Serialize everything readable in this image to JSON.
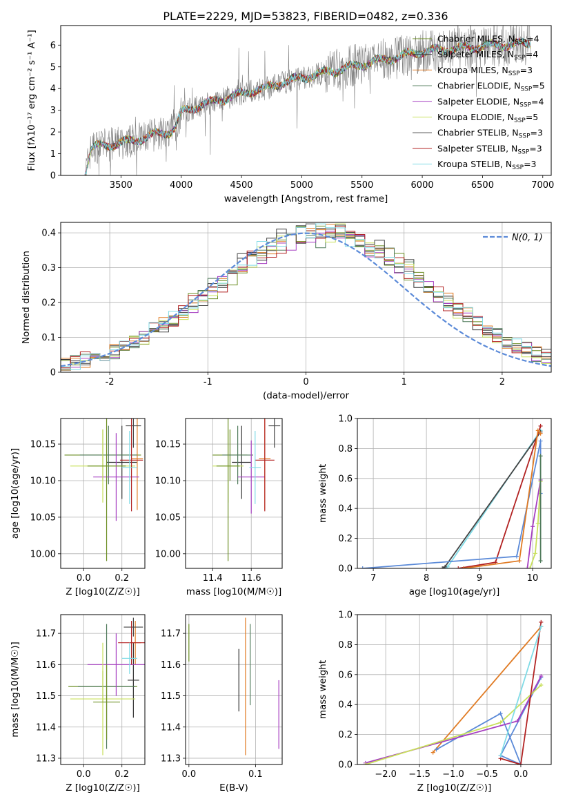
{
  "figure": {
    "title": "PLATE=2229, MJD=53823, FIBERID=0482, z=0.336"
  },
  "colors": {
    "Chabrier MILES": "#6b8e23",
    "Salpeter MILES": "#333333",
    "Kroupa MILES": "#e07b24",
    "Chabrier ELODIE": "#4f7a5a",
    "Salpeter ELODIE": "#a63ec1",
    "Kroupa ELODIE": "#c8e05a",
    "Chabrier STELIB": "#444444",
    "Salpeter STELIB": "#b22222",
    "Kroupa STELIB": "#7fdbe6",
    "data": "#808080",
    "normal": "#5b8ad8"
  },
  "chart_data": [
    {
      "id": "spectrum",
      "type": "line",
      "title": "PLATE=2229, MJD=53823, FIBERID=0482, z=0.336",
      "xlabel": "wavelength [Angstrom, rest frame]",
      "ylabel": "Flux [fλ10⁻¹⁷ erg cm⁻² s⁻¹ A⁻¹]",
      "xlim": [
        3000,
        7070
      ],
      "ylim": [
        0,
        6.9
      ],
      "xticks": [
        3500,
        4000,
        4500,
        5000,
        5500,
        6000,
        6500,
        7000
      ],
      "yticks": [
        0,
        1,
        2,
        3,
        4,
        5,
        6
      ],
      "grid": false,
      "legend_position": "top-right",
      "legend": [
        {
          "label": "Chabrier MILES, N",
          "sub": "SSP",
          "suffix": "=4"
        },
        {
          "label": "Salpeter MILES, N",
          "sub": "SSP",
          "suffix": "=4"
        },
        {
          "label": "Kroupa MILES, N",
          "sub": "SSP",
          "suffix": "=3"
        },
        {
          "label": "Chabrier ELODIE, N",
          "sub": "SSP",
          "suffix": "=5"
        },
        {
          "label": "Salpeter ELODIE, N",
          "sub": "SSP",
          "suffix": "=4"
        },
        {
          "label": "Kroupa ELODIE, N",
          "sub": "SSP",
          "suffix": "=5"
        },
        {
          "label": "Chabrier STELIB, N",
          "sub": "SSP",
          "suffix": "=3"
        },
        {
          "label": "Salpeter STELIB, N",
          "sub": "SSP",
          "suffix": "=3"
        },
        {
          "label": "Kroupa STELIB, N",
          "sub": "SSP",
          "suffix": "=3"
        }
      ],
      "model_continuum": {
        "x": [
          3200,
          3250,
          3300,
          3400,
          3500,
          3600,
          3700,
          3800,
          3900,
          3950,
          4000,
          4100,
          4200,
          4300,
          4400,
          4500,
          4600,
          4700,
          4800,
          4900,
          5000,
          5100,
          5200,
          5300,
          5400,
          5500,
          5600,
          5700,
          5800,
          5900,
          6000,
          6100,
          6200,
          6300,
          6400,
          6500,
          6600,
          6700,
          6800,
          6900
        ],
        "y": [
          0.0,
          1.2,
          1.35,
          1.4,
          1.5,
          1.6,
          1.75,
          1.9,
          2.0,
          2.2,
          2.9,
          3.1,
          3.3,
          3.45,
          3.6,
          3.75,
          3.9,
          4.0,
          4.2,
          4.35,
          4.5,
          4.6,
          4.75,
          4.85,
          5.0,
          5.1,
          5.25,
          5.35,
          5.45,
          5.6,
          5.7,
          5.75,
          5.8,
          5.85,
          5.9,
          5.95,
          6.0,
          6.0,
          6.05,
          6.1
        ]
      }
    },
    {
      "id": "residuals",
      "type": "step",
      "xlabel": "(data-model)/error",
      "ylabel": "Normed distribution",
      "xlim": [
        -2.5,
        2.5
      ],
      "ylim": [
        0,
        0.43
      ],
      "xticks": [
        -2,
        -1,
        0,
        1,
        2
      ],
      "yticks": [
        0.0,
        0.1,
        0.2,
        0.3,
        0.4
      ],
      "grid": true,
      "legend_position": "top-right",
      "legend": [
        "N(0, 1)"
      ],
      "bin_width": 0.1
    },
    {
      "id": "age-vs-Z",
      "type": "errorbar",
      "xlabel": "Z [log10(Z/Z☉)]",
      "ylabel": "age  [log10(age/yr)]",
      "xlim": [
        -0.12,
        0.32
      ],
      "ylim": [
        9.98,
        10.185
      ],
      "xticks": [
        "0.0",
        "0.2"
      ],
      "yticks": [
        "10.00",
        "10.05",
        "10.10",
        "10.15"
      ],
      "grid": true,
      "points": [
        {
          "x": 0.1,
          "y": 10.135,
          "xerr": 0.2,
          "yerr": 0.035
        },
        {
          "x": 0.2,
          "y": 10.125,
          "xerr": 0.08,
          "yerr": 0.05
        },
        {
          "x": 0.28,
          "y": 10.13,
          "xerr": 0.03,
          "yerr": 0.07
        },
        {
          "x": 0.13,
          "y": 10.135,
          "xerr": 0.15,
          "yerr": 0.04
        },
        {
          "x": 0.17,
          "y": 10.105,
          "xerr": 0.12,
          "yerr": 0.06
        },
        {
          "x": 0.1,
          "y": 10.12,
          "xerr": 0.17,
          "yerr": 0.05
        },
        {
          "x": 0.26,
          "y": 10.175,
          "xerr": 0.04,
          "yerr": 0.03
        },
        {
          "x": 0.25,
          "y": 10.128,
          "xerr": 0.06,
          "yerr": 0.07
        },
        {
          "x": 0.24,
          "y": 10.118,
          "xerr": 0.04,
          "yerr": 0.05
        },
        {
          "x": 0.12,
          "y": 10.12,
          "xerr": 0.1,
          "yerr": 0.13
        }
      ]
    },
    {
      "id": "age-vs-mass",
      "type": "errorbar",
      "xlabel": "mass [log10(M/M☉)]",
      "ylabel": "",
      "xlim": [
        11.26,
        11.76
      ],
      "ylim": [
        9.98,
        10.185
      ],
      "xticks": [
        "11.4",
        "11.6"
      ],
      "yticks": [
        "10.00",
        "10.05",
        "10.10",
        "10.15"
      ],
      "grid": true,
      "points": [
        {
          "x": 11.49,
          "y": 10.135,
          "xerr": 0.09,
          "yerr": 0.035
        },
        {
          "x": 11.55,
          "y": 10.125,
          "xerr": 0.05,
          "yerr": 0.05
        },
        {
          "x": 11.67,
          "y": 10.13,
          "xerr": 0.03,
          "yerr": 0.07
        },
        {
          "x": 11.53,
          "y": 10.135,
          "xerr": 0.08,
          "yerr": 0.04
        },
        {
          "x": 11.6,
          "y": 10.105,
          "xerr": 0.07,
          "yerr": 0.05
        },
        {
          "x": 11.48,
          "y": 10.12,
          "xerr": 0.08,
          "yerr": 0.05
        },
        {
          "x": 11.72,
          "y": 10.175,
          "xerr": 0.03,
          "yerr": 0.03
        },
        {
          "x": 11.67,
          "y": 10.128,
          "xerr": 0.05,
          "yerr": 0.07
        },
        {
          "x": 11.62,
          "y": 10.118,
          "xerr": 0.03,
          "yerr": 0.05
        },
        {
          "x": 11.48,
          "y": 10.12,
          "xerr": 0.06,
          "yerr": 0.13
        }
      ]
    },
    {
      "id": "weight-vs-age",
      "type": "line",
      "xlabel": "age  [log10(age/yr)]",
      "ylabel": "mass weight",
      "xlim": [
        6.7,
        10.35
      ],
      "ylim": [
        0,
        1
      ],
      "xticks": [
        "7",
        "8",
        "9",
        "10"
      ],
      "yticks": [
        "0.0",
        "0.2",
        "0.4",
        "0.6",
        "0.8",
        "1.0"
      ],
      "grid": true,
      "series": [
        {
          "color": "Kroupa STELIB",
          "x": [
            8.35,
            8.4,
            10.15
          ],
          "y": [
            0.0,
            0.01,
            0.92
          ]
        },
        {
          "color": "Chabrier STELIB",
          "x": [
            8.3,
            8.35,
            10.15
          ],
          "y": [
            0.0,
            0.01,
            0.91
          ]
        },
        {
          "color": "Salpeter STELIB",
          "x": [
            8.6,
            9.3,
            10.15
          ],
          "y": [
            0.0,
            0.04,
            0.95
          ]
        },
        {
          "color": "normal",
          "x": [
            6.8,
            9.7,
            10.15,
            10.15
          ],
          "y": [
            0.0,
            0.08,
            0.85,
            0.5
          ]
        },
        {
          "color": "Kroupa MILES",
          "x": [
            8.7,
            9.75,
            10.1,
            10.15
          ],
          "y": [
            0.0,
            0.05,
            0.92,
            0.9
          ]
        },
        {
          "color": "Salpeter ELODIE",
          "x": [
            9.9,
            10.0,
            10.15
          ],
          "y": [
            0.0,
            0.28,
            0.59
          ]
        },
        {
          "color": "Kroupa ELODIE",
          "x": [
            9.95,
            10.05,
            10.1,
            10.15
          ],
          "y": [
            0.0,
            0.1,
            0.3,
            0.58
          ]
        },
        {
          "color": "Chabrier ELODIE",
          "x": [
            10.15,
            10.15
          ],
          "y": [
            0.05,
            0.75
          ]
        }
      ]
    },
    {
      "id": "mass-vs-Z",
      "type": "errorbar",
      "xlabel": "Z [log10(Z/Z☉)]",
      "ylabel": "mass [log10(M/M☉)]",
      "xlim": [
        -0.12,
        0.32
      ],
      "ylim": [
        11.28,
        11.76
      ],
      "xticks": [
        "0.0",
        "0.2"
      ],
      "yticks": [
        "11.3",
        "11.4",
        "11.5",
        "11.6",
        "11.7"
      ],
      "grid": true,
      "points": [
        {
          "x": 0.1,
          "y": 11.53,
          "xerr": 0.18,
          "yerr": 0.05
        },
        {
          "x": 0.26,
          "y": 11.55,
          "xerr": 0.03,
          "yerr": 0.12
        },
        {
          "x": 0.27,
          "y": 11.67,
          "xerr": 0.03,
          "yerr": 0.07
        },
        {
          "x": 0.12,
          "y": 11.53,
          "xerr": 0.15,
          "yerr": 0.2
        },
        {
          "x": 0.17,
          "y": 11.6,
          "xerr": 0.15,
          "yerr": 0.1
        },
        {
          "x": 0.1,
          "y": 11.49,
          "xerr": 0.17,
          "yerr": 0.18
        },
        {
          "x": 0.26,
          "y": 11.72,
          "xerr": 0.05,
          "yerr": 0.03
        },
        {
          "x": 0.25,
          "y": 11.67,
          "xerr": 0.07,
          "yerr": 0.07
        },
        {
          "x": 0.24,
          "y": 11.62,
          "xerr": 0.04,
          "yerr": 0.05
        },
        {
          "x": 0.12,
          "y": 11.48,
          "xerr": 0.07,
          "yerr": 0.12
        }
      ]
    },
    {
      "id": "mass-vs-ebv",
      "type": "errorbar",
      "xlabel": "E(B-V)",
      "ylabel": "",
      "xlim": [
        -0.005,
        0.14
      ],
      "ylim": [
        11.28,
        11.76
      ],
      "xticks": [
        "0.0",
        "0.1"
      ],
      "yticks": [
        "11.3",
        "11.4",
        "11.5",
        "11.6",
        "11.7"
      ],
      "grid": true,
      "points": [
        {
          "x": 0.0,
          "y": 11.67,
          "yerr": 0.06
        },
        {
          "x": 0.075,
          "y": 11.55,
          "yerr": 0.1
        },
        {
          "x": 0.085,
          "y": 11.53,
          "yerr": 0.22
        },
        {
          "x": 0.092,
          "y": 11.6,
          "yerr": 0.13
        },
        {
          "x": 0.135,
          "y": 11.44,
          "yerr": 0.11
        }
      ]
    },
    {
      "id": "weight-vs-Z",
      "type": "line",
      "xlabel": "Z [log10(Z/Z☉)]",
      "ylabel": "mass weight",
      "xlim": [
        -2.42,
        0.45
      ],
      "ylim": [
        0,
        1
      ],
      "xticks": [
        "−2.0",
        "−1.5",
        "−1.0",
        "−0.5",
        "0.0"
      ],
      "yticks": [
        "0.0",
        "0.2",
        "0.4",
        "0.6",
        "0.8",
        "1.0"
      ],
      "grid": true,
      "series": [
        {
          "color": "Kroupa MILES",
          "x": [
            -1.3,
            0.3
          ],
          "y": [
            0.08,
            0.92
          ]
        },
        {
          "color": "normal",
          "x": [
            -1.25,
            -0.3,
            -0.0,
            -0.3,
            0.3
          ],
          "y": [
            0.1,
            0.34,
            0.0,
            0.06,
            0.58
          ]
        },
        {
          "color": "Salpeter ELODIE",
          "x": [
            -2.3,
            -0.05,
            0.3
          ],
          "y": [
            0.01,
            0.29,
            0.59
          ]
        },
        {
          "color": "Kroupa ELODIE",
          "x": [
            -2.3,
            -0.3,
            0.3
          ],
          "y": [
            0.0,
            0.28,
            0.53
          ]
        },
        {
          "color": "Salpeter STELIB",
          "x": [
            -0.3,
            0.0,
            0.3
          ],
          "y": [
            0.04,
            0.0,
            0.95
          ]
        },
        {
          "color": "Kroupa STELIB",
          "x": [
            -0.3,
            0.3
          ],
          "y": [
            0.06,
            0.92
          ]
        }
      ]
    }
  ]
}
